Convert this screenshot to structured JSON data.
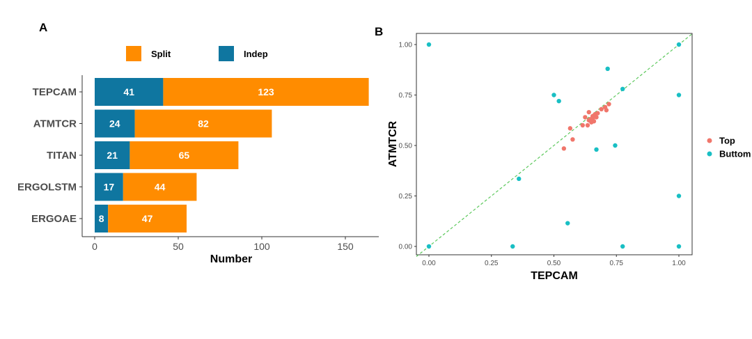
{
  "chart_data": [
    {
      "panel": "A",
      "type": "bar",
      "orientation": "horizontal",
      "stacked": true,
      "categories": [
        "TEPCAM",
        "ATMTCR",
        "TITAN",
        "ERGOLSTM",
        "ERGOAE"
      ],
      "series": [
        {
          "name": "Indep",
          "values": [
            41,
            24,
            21,
            17,
            8
          ],
          "color": "#0f76a0"
        },
        {
          "name": "Split",
          "values": [
            123,
            82,
            65,
            44,
            47
          ],
          "color": "#ff8c00"
        }
      ],
      "xlabel": "Number",
      "xlim": [
        0,
        170
      ],
      "xticks": [
        0,
        50,
        100,
        150
      ],
      "legend_position": "top",
      "grid": false
    },
    {
      "panel": "B",
      "type": "scatter",
      "xlabel": "TEPCAM",
      "ylabel": "ATMTCR",
      "xlim": [
        0,
        1
      ],
      "ylim": [
        0,
        1
      ],
      "xticks": [
        "0.00",
        "0.25",
        "0.50",
        "0.75",
        "1.00"
      ],
      "yticks": [
        "0.00",
        "0.25",
        "0.50",
        "0.75",
        "1.00"
      ],
      "reference_line": {
        "type": "identity",
        "style": "dashed",
        "color": "#5cc85c"
      },
      "legend_position": "right",
      "grid": false,
      "series": [
        {
          "name": "Top",
          "color": "#f0766b",
          "points": [
            [
              0.54,
              0.485
            ],
            [
              0.565,
              0.585
            ],
            [
              0.575,
              0.53
            ],
            [
              0.615,
              0.6
            ],
            [
              0.625,
              0.64
            ],
            [
              0.635,
              0.6
            ],
            [
              0.64,
              0.665
            ],
            [
              0.645,
              0.63
            ],
            [
              0.65,
              0.615
            ],
            [
              0.655,
              0.645
            ],
            [
              0.66,
              0.62
            ],
            [
              0.665,
              0.655
            ],
            [
              0.67,
              0.64
            ],
            [
              0.675,
              0.66
            ],
            [
              0.69,
              0.68
            ],
            [
              0.705,
              0.69
            ],
            [
              0.71,
              0.675
            ],
            [
              0.72,
              0.705
            ],
            [
              0.64,
              0.625
            ],
            [
              0.655,
              0.635
            ]
          ]
        },
        {
          "name": "Buttom",
          "color": "#19bfc4",
          "points": [
            [
              0.0,
              1.0
            ],
            [
              1.0,
              1.0
            ],
            [
              0.715,
              0.88
            ],
            [
              0.5,
              0.75
            ],
            [
              0.52,
              0.72
            ],
            [
              0.775,
              0.78
            ],
            [
              1.0,
              0.75
            ],
            [
              0.67,
              0.48
            ],
            [
              0.745,
              0.5
            ],
            [
              0.36,
              0.335
            ],
            [
              1.0,
              0.25
            ],
            [
              0.555,
              0.115
            ],
            [
              0.0,
              0.0
            ],
            [
              0.335,
              0.0
            ],
            [
              0.775,
              0.0
            ],
            [
              1.0,
              0.0
            ]
          ]
        }
      ]
    }
  ]
}
